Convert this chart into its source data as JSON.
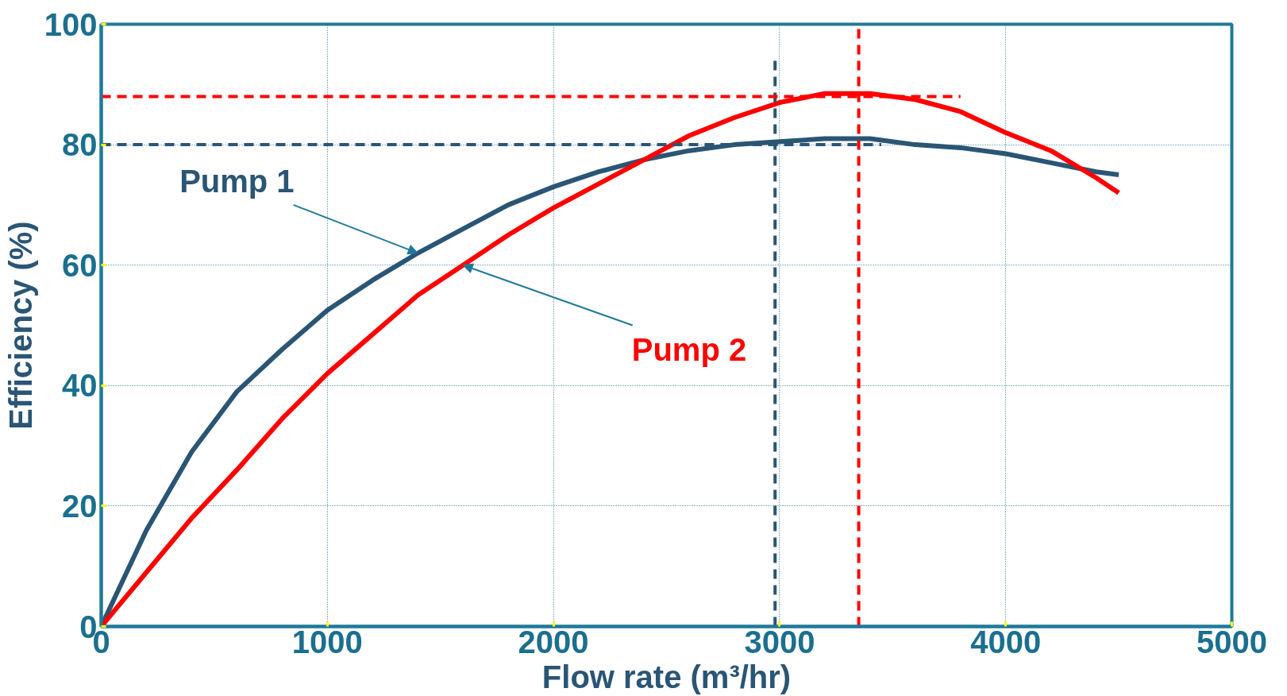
{
  "chart_data": {
    "type": "line",
    "xlabel": "Flow rate (m³/hr)",
    "ylabel": "Efficiency (%)",
    "xlim": [
      0,
      5000
    ],
    "ylim": [
      0,
      100
    ],
    "xticks": [
      0,
      1000,
      2000,
      3000,
      4000,
      5000
    ],
    "yticks": [
      0,
      20,
      40,
      60,
      80,
      100
    ],
    "grid": true,
    "line_style": "solid",
    "marker": "none",
    "x": [
      0,
      200,
      400,
      600,
      800,
      1000,
      1200,
      1400,
      1600,
      1800,
      2000,
      2200,
      2400,
      2600,
      2800,
      3000,
      3200,
      3400,
      3600,
      3800,
      4000,
      4200,
      4400,
      4500
    ],
    "series": [
      {
        "name": "Pump 1",
        "color": "#2a5575",
        "values": [
          0,
          16,
          29,
          39,
          46,
          52.5,
          57.5,
          62,
          66,
          70,
          73,
          75.5,
          77.5,
          79,
          80,
          80.5,
          81,
          81,
          80,
          79.5,
          78.5,
          77,
          75.5,
          75
        ]
      },
      {
        "name": "Pump 2",
        "color": "#ff0000",
        "values": [
          0,
          9,
          18,
          26,
          34.5,
          42,
          48.5,
          55,
          60,
          65,
          69.5,
          73.5,
          77.5,
          81.5,
          84.5,
          87,
          88.5,
          88.5,
          87.5,
          85.5,
          82,
          79,
          74.5,
          72
        ]
      }
    ],
    "ref_lines": [
      {
        "axis": "y",
        "value": 80,
        "color": "#2a5575",
        "line_style": "dashed"
      },
      {
        "axis": "x",
        "value": 2980,
        "color": "#2a5575",
        "line_style": "dashed"
      },
      {
        "axis": "y",
        "value": 88,
        "color": "#ff0000",
        "line_style": "dashed"
      },
      {
        "axis": "x",
        "value": 3350,
        "color": "#ff0000",
        "line_style": "dashed"
      }
    ]
  }
}
